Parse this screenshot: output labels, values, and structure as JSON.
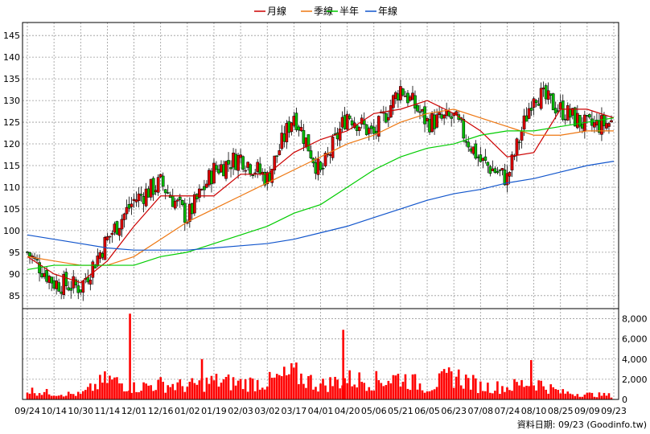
{
  "legend": {
    "items": [
      {
        "label": "月線",
        "color": "#cc0000"
      },
      {
        "label": "季線",
        "color": "#ee7711"
      },
      {
        "label": "半年",
        "color": "#00cc00"
      },
      {
        "label": "年線",
        "color": "#1155cc"
      }
    ]
  },
  "source_note": "資料日期: 09/23 (Goodinfo.tw)",
  "colors": {
    "up": "#dd0000",
    "down": "#00bb00",
    "volume": "#ff0000",
    "grid": "#999999"
  },
  "chart_data": [
    {
      "type": "candlestick",
      "title": "",
      "ylim": [
        82,
        148
      ],
      "yticks": [
        85,
        90,
        95,
        100,
        105,
        110,
        115,
        120,
        125,
        130,
        135,
        140,
        145
      ],
      "grid": true,
      "legend_position": "top-center",
      "x_tick_labels": [
        "09/24",
        "10/14",
        "10/30",
        "11/14",
        "12/01",
        "12/16",
        "01/02",
        "01/19",
        "02/03",
        "03/02",
        "03/17",
        "04/01",
        "04/20",
        "05/06",
        "05/21",
        "06/05",
        "06/23",
        "07/08",
        "07/24",
        "08/10",
        "08/25",
        "09/09",
        "09/23"
      ],
      "anchors": [
        {
          "label": "09/24",
          "close": 95
        },
        {
          "label": "10/14",
          "close": 88
        },
        {
          "label": "10/30",
          "close": 87
        },
        {
          "label": "11/14",
          "close": 98
        },
        {
          "label": "12/01",
          "close": 107
        },
        {
          "label": "12/16",
          "close": 111
        },
        {
          "label": "01/02",
          "close": 103
        },
        {
          "label": "01/19",
          "close": 114
        },
        {
          "label": "02/03",
          "close": 117
        },
        {
          "label": "03/02",
          "close": 112
        },
        {
          "label": "03/17",
          "close": 127
        },
        {
          "label": "04/01",
          "close": 113
        },
        {
          "label": "04/20",
          "close": 127
        },
        {
          "label": "05/06",
          "close": 122
        },
        {
          "label": "05/21",
          "close": 133
        },
        {
          "label": "06/05",
          "close": 125
        },
        {
          "label": "06/23",
          "close": 126
        },
        {
          "label": "07/08",
          "close": 116
        },
        {
          "label": "07/24",
          "close": 112
        },
        {
          "label": "08/10",
          "close": 132
        },
        {
          "label": "08/25",
          "close": 128
        },
        {
          "label": "09/09",
          "close": 124
        },
        {
          "label": "09/23",
          "close": 125
        }
      ],
      "series": [
        {
          "name": "月線",
          "points": [
            {
              "x": "09/24",
              "y": 94
            },
            {
              "x": "10/14",
              "y": 90
            },
            {
              "x": "10/30",
              "y": 88
            },
            {
              "x": "11/14",
              "y": 93
            },
            {
              "x": "12/01",
              "y": 101
            },
            {
              "x": "12/16",
              "y": 108
            },
            {
              "x": "01/02",
              "y": 108
            },
            {
              "x": "01/19",
              "y": 108
            },
            {
              "x": "02/03",
              "y": 113
            },
            {
              "x": "03/02",
              "y": 113
            },
            {
              "x": "03/17",
              "y": 118
            },
            {
              "x": "04/01",
              "y": 121
            },
            {
              "x": "04/20",
              "y": 123
            },
            {
              "x": "05/06",
              "y": 127
            },
            {
              "x": "05/21",
              "y": 128
            },
            {
              "x": "06/05",
              "y": 130
            },
            {
              "x": "06/23",
              "y": 127
            },
            {
              "x": "07/08",
              "y": 123
            },
            {
              "x": "07/24",
              "y": 117
            },
            {
              "x": "08/10",
              "y": 118
            },
            {
              "x": "08/25",
              "y": 128
            },
            {
              "x": "09/09",
              "y": 128
            },
            {
              "x": "09/23",
              "y": 126
            }
          ]
        },
        {
          "name": "季線",
          "points": [
            {
              "x": "09/24",
              "y": 94
            },
            {
              "x": "10/14",
              "y": 93
            },
            {
              "x": "10/30",
              "y": 92
            },
            {
              "x": "11/14",
              "y": 92
            },
            {
              "x": "12/01",
              "y": 94
            },
            {
              "x": "12/16",
              "y": 98
            },
            {
              "x": "01/02",
              "y": 102
            },
            {
              "x": "01/19",
              "y": 105
            },
            {
              "x": "02/03",
              "y": 108
            },
            {
              "x": "03/02",
              "y": 111
            },
            {
              "x": "03/17",
              "y": 114
            },
            {
              "x": "04/01",
              "y": 117
            },
            {
              "x": "04/20",
              "y": 120
            },
            {
              "x": "05/06",
              "y": 122
            },
            {
              "x": "05/21",
              "y": 125
            },
            {
              "x": "06/05",
              "y": 127
            },
            {
              "x": "06/23",
              "y": 128
            },
            {
              "x": "07/08",
              "y": 126
            },
            {
              "x": "07/24",
              "y": 124
            },
            {
              "x": "08/10",
              "y": 122
            },
            {
              "x": "08/25",
              "y": 122
            },
            {
              "x": "09/09",
              "y": 123
            },
            {
              "x": "09/23",
              "y": 123
            }
          ]
        },
        {
          "name": "半年",
          "points": [
            {
              "x": "09/24",
              "y": 91
            },
            {
              "x": "10/14",
              "y": 92
            },
            {
              "x": "10/30",
              "y": 92
            },
            {
              "x": "11/14",
              "y": 92
            },
            {
              "x": "12/01",
              "y": 92
            },
            {
              "x": "12/16",
              "y": 94
            },
            {
              "x": "01/02",
              "y": 95
            },
            {
              "x": "01/19",
              "y": 97
            },
            {
              "x": "02/03",
              "y": 99
            },
            {
              "x": "03/02",
              "y": 101
            },
            {
              "x": "03/17",
              "y": 104
            },
            {
              "x": "04/01",
              "y": 106
            },
            {
              "x": "04/20",
              "y": 110
            },
            {
              "x": "05/06",
              "y": 114
            },
            {
              "x": "05/21",
              "y": 117
            },
            {
              "x": "06/05",
              "y": 119
            },
            {
              "x": "06/23",
              "y": 120
            },
            {
              "x": "07/08",
              "y": 122
            },
            {
              "x": "07/24",
              "y": 123
            },
            {
              "x": "08/10",
              "y": 123
            },
            {
              "x": "08/25",
              "y": 124
            },
            {
              "x": "09/09",
              "y": 125
            },
            {
              "x": "09/23",
              "y": 126
            }
          ]
        },
        {
          "name": "年線",
          "points": [
            {
              "x": "09/24",
              "y": 99
            },
            {
              "x": "10/14",
              "y": 98
            },
            {
              "x": "10/30",
              "y": 97
            },
            {
              "x": "11/14",
              "y": 96
            },
            {
              "x": "12/01",
              "y": 95.5
            },
            {
              "x": "12/16",
              "y": 95.5
            },
            {
              "x": "01/02",
              "y": 95.5
            },
            {
              "x": "01/19",
              "y": 96
            },
            {
              "x": "02/03",
              "y": 96.5
            },
            {
              "x": "03/02",
              "y": 97
            },
            {
              "x": "03/17",
              "y": 98
            },
            {
              "x": "04/01",
              "y": 99.5
            },
            {
              "x": "04/20",
              "y": 101
            },
            {
              "x": "05/06",
              "y": 103
            },
            {
              "x": "05/21",
              "y": 105
            },
            {
              "x": "06/05",
              "y": 107
            },
            {
              "x": "06/23",
              "y": 108.5
            },
            {
              "x": "07/08",
              "y": 109.5
            },
            {
              "x": "07/24",
              "y": 111
            },
            {
              "x": "08/10",
              "y": 112
            },
            {
              "x": "08/25",
              "y": 113.5
            },
            {
              "x": "09/09",
              "y": 115
            },
            {
              "x": "09/23",
              "y": 116
            }
          ]
        }
      ]
    },
    {
      "type": "bar",
      "title": "",
      "ylim": [
        0,
        9000
      ],
      "yticks": [
        0,
        2000,
        4000,
        6000,
        8000
      ],
      "ytick_labels": [
        "0",
        "2,000",
        "4,000",
        "6,000",
        "8,000"
      ],
      "grid": true,
      "anchors": [
        {
          "label": "09/24",
          "value": 900
        },
        {
          "label": "10/14",
          "value": 600
        },
        {
          "label": "10/30",
          "value": 500
        },
        {
          "label": "11/14",
          "value": 2000
        },
        {
          "label": "12/01",
          "value": 1200
        },
        {
          "label": "12/16",
          "value": 1500
        },
        {
          "label": "01/02",
          "value": 1300
        },
        {
          "label": "01/19",
          "value": 1800
        },
        {
          "label": "02/03",
          "value": 1600
        },
        {
          "label": "03/02",
          "value": 1700
        },
        {
          "label": "03/17",
          "value": 2500
        },
        {
          "label": "04/01",
          "value": 1400
        },
        {
          "label": "04/20",
          "value": 2000
        },
        {
          "label": "05/06",
          "value": 1800
        },
        {
          "label": "05/21",
          "value": 2200
        },
        {
          "label": "06/05",
          "value": 1200
        },
        {
          "label": "06/23",
          "value": 2400
        },
        {
          "label": "07/08",
          "value": 1300
        },
        {
          "label": "07/24",
          "value": 1200
        },
        {
          "label": "08/10",
          "value": 1800
        },
        {
          "label": "08/25",
          "value": 700
        },
        {
          "label": "09/09",
          "value": 500
        },
        {
          "label": "09/23",
          "value": 400
        }
      ],
      "spikes": [
        {
          "after": "11/14",
          "frac": 0.85,
          "value": 8500
        },
        {
          "after": "04/01",
          "frac": 0.85,
          "value": 6900
        },
        {
          "after": "07/24",
          "frac": 0.9,
          "value": 3900
        },
        {
          "after": "01/02",
          "frac": 0.55,
          "value": 4000
        }
      ]
    }
  ]
}
